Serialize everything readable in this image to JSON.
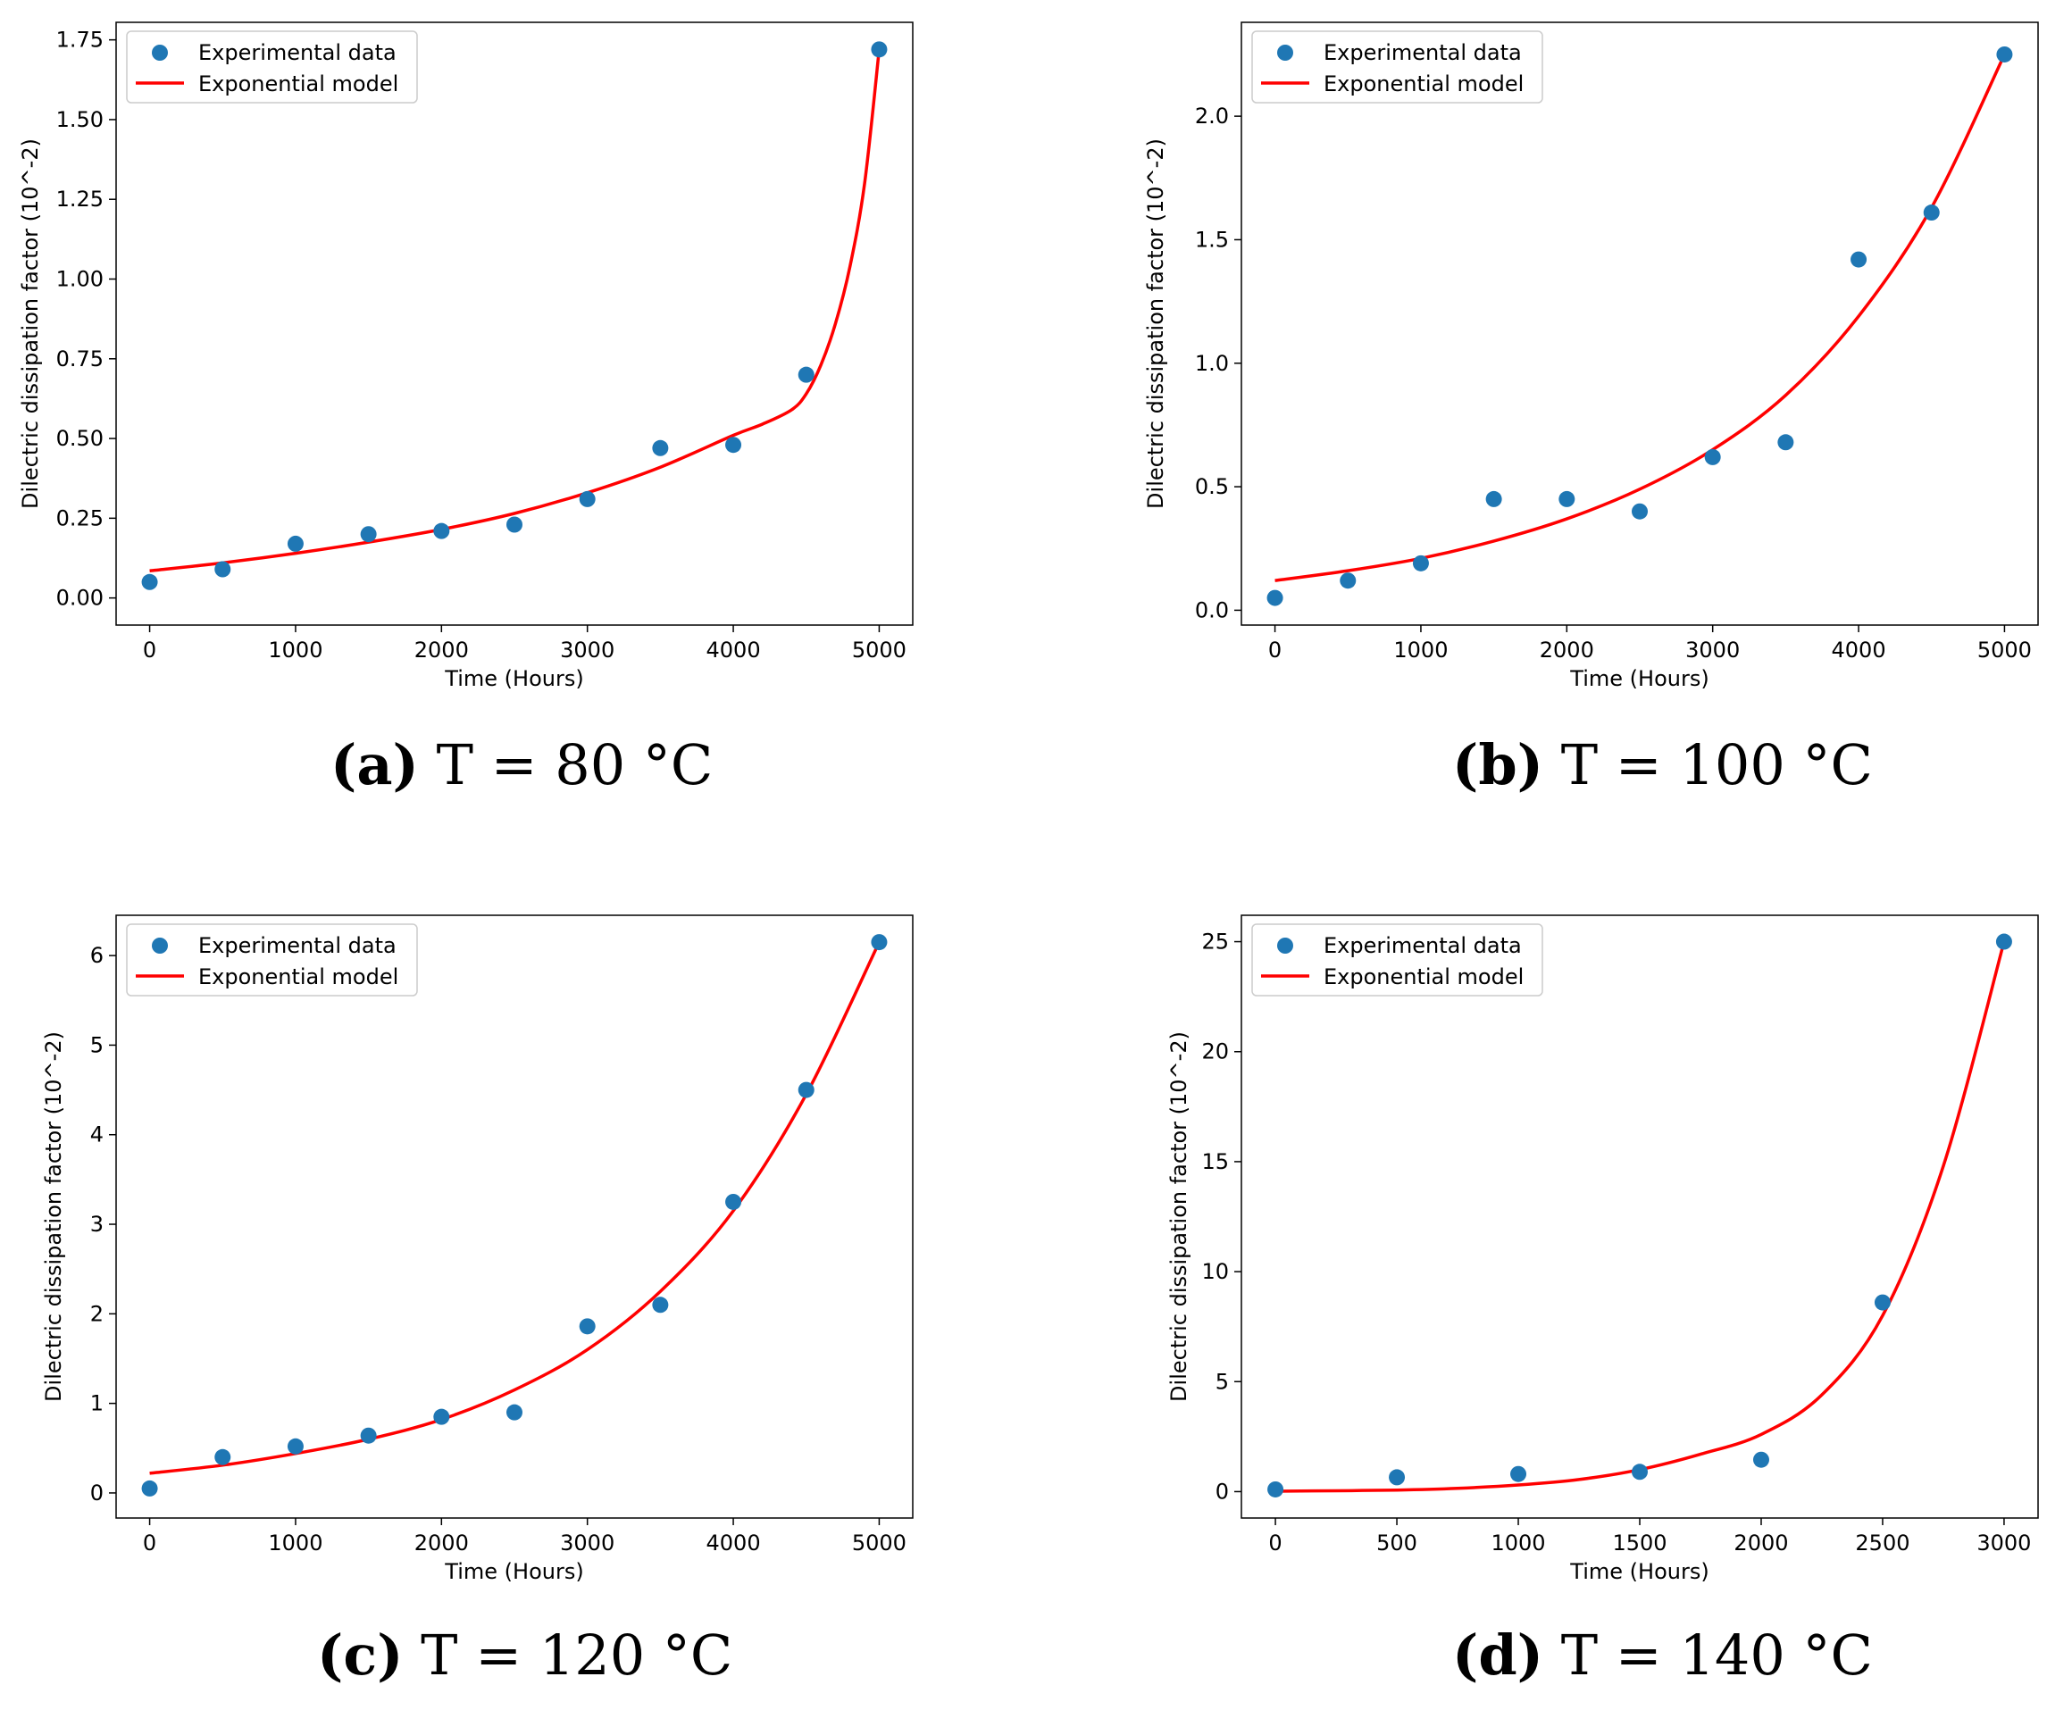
{
  "chart_data": [
    {
      "type": "scatter",
      "panel": "a",
      "caption_letter": "(a)",
      "caption_text": "T = 80 °C",
      "xlabel": "Time (Hours)",
      "ylabel": "Dilectric dissipation factor (10^-2)",
      "xlim": [
        -230,
        5230
      ],
      "ylim": [
        -0.085,
        1.805
      ],
      "xticks": [
        0,
        1000,
        2000,
        3000,
        4000,
        5000
      ],
      "xtick_labels": [
        "0",
        "1000",
        "2000",
        "3000",
        "4000",
        "5000"
      ],
      "yticks": [
        0.0,
        0.25,
        0.5,
        0.75,
        1.0,
        1.25,
        1.5,
        1.75
      ],
      "ytick_labels": [
        "0.00",
        "0.25",
        "0.50",
        "0.75",
        "1.00",
        "1.25",
        "1.50",
        "1.75"
      ],
      "series": [
        {
          "name": "Experimental data",
          "kind": "scatter",
          "color": "#1f77b4",
          "x": [
            0,
            500,
            1000,
            1500,
            2000,
            2500,
            3000,
            3500,
            4000,
            4500,
            5000
          ],
          "y": [
            0.05,
            0.09,
            0.17,
            0.2,
            0.21,
            0.23,
            0.31,
            0.47,
            0.48,
            0.7,
            1.72
          ]
        },
        {
          "name": "Exponential model",
          "kind": "line",
          "color": "#ff0000",
          "x": [
            0,
            500,
            1000,
            1500,
            2000,
            2500,
            3000,
            3500,
            4000,
            4200,
            4400,
            4500,
            4600,
            4700,
            4800,
            4900,
            5000
          ],
          "y": [
            0.085,
            0.11,
            0.14,
            0.175,
            0.215,
            0.265,
            0.33,
            0.41,
            0.51,
            0.545,
            0.59,
            0.64,
            0.73,
            0.86,
            1.04,
            1.3,
            1.72
          ]
        }
      ],
      "legend": {
        "location": "upper-left",
        "entries": [
          "Experimental data",
          "Exponential model"
        ]
      }
    },
    {
      "type": "scatter",
      "panel": "b",
      "caption_letter": "(b)",
      "caption_text": "T = 100 °C",
      "xlabel": "Time (Hours)",
      "ylabel": "Dilectric dissipation factor (10^-2)",
      "xlim": [
        -230,
        5230
      ],
      "ylim": [
        -0.06,
        2.38
      ],
      "xticks": [
        0,
        1000,
        2000,
        3000,
        4000,
        5000
      ],
      "xtick_labels": [
        "0",
        "1000",
        "2000",
        "3000",
        "4000",
        "5000"
      ],
      "yticks": [
        0.0,
        0.5,
        1.0,
        1.5,
        2.0
      ],
      "ytick_labels": [
        "0.0",
        "0.5",
        "1.0",
        "1.5",
        "2.0"
      ],
      "series": [
        {
          "name": "Experimental data",
          "kind": "scatter",
          "color": "#1f77b4",
          "x": [
            0,
            500,
            1000,
            1500,
            2000,
            2500,
            3000,
            3500,
            4000,
            4500,
            5000
          ],
          "y": [
            0.05,
            0.12,
            0.19,
            0.45,
            0.45,
            0.4,
            0.62,
            0.68,
            1.42,
            1.61,
            2.25
          ]
        },
        {
          "name": "Exponential model",
          "kind": "line",
          "color": "#ff0000",
          "x": [
            0,
            500,
            1000,
            1500,
            2000,
            2500,
            3000,
            3500,
            4000,
            4500,
            5000
          ],
          "y": [
            0.12,
            0.16,
            0.21,
            0.28,
            0.37,
            0.49,
            0.65,
            0.87,
            1.19,
            1.63,
            2.25
          ]
        }
      ],
      "legend": {
        "location": "upper-left",
        "entries": [
          "Experimental data",
          "Exponential model"
        ]
      }
    },
    {
      "type": "scatter",
      "panel": "c",
      "caption_letter": "(c)",
      "caption_text": "T = 120 °C",
      "xlabel": "Time (Hours)",
      "ylabel": "Dilectric dissipation factor (10^-2)",
      "xlim": [
        -230,
        5230
      ],
      "ylim": [
        -0.28,
        6.45
      ],
      "xticks": [
        0,
        1000,
        2000,
        3000,
        4000,
        5000
      ],
      "xtick_labels": [
        "0",
        "1000",
        "2000",
        "3000",
        "4000",
        "5000"
      ],
      "yticks": [
        0,
        1,
        2,
        3,
        4,
        5,
        6
      ],
      "ytick_labels": [
        "0",
        "1",
        "2",
        "3",
        "4",
        "5",
        "6"
      ],
      "series": [
        {
          "name": "Experimental data",
          "kind": "scatter",
          "color": "#1f77b4",
          "x": [
            0,
            500,
            1000,
            1500,
            2000,
            2500,
            3000,
            3500,
            4000,
            4500,
            5000
          ],
          "y": [
            0.05,
            0.4,
            0.52,
            0.64,
            0.85,
            0.9,
            1.86,
            2.1,
            3.25,
            4.5,
            6.15
          ]
        },
        {
          "name": "Exponential model",
          "kind": "line",
          "color": "#ff0000",
          "x": [
            0,
            500,
            1000,
            1500,
            2000,
            2500,
            3000,
            3500,
            4000,
            4500,
            5000
          ],
          "y": [
            0.22,
            0.31,
            0.44,
            0.6,
            0.82,
            1.15,
            1.6,
            2.25,
            3.15,
            4.45,
            6.15
          ]
        }
      ],
      "legend": {
        "location": "upper-left",
        "entries": [
          "Experimental data",
          "Exponential model"
        ]
      }
    },
    {
      "type": "scatter",
      "panel": "d",
      "caption_letter": "(d)",
      "caption_text": "T = 140 °C",
      "xlabel": "Time (Hours)",
      "ylabel": "Dilectric dissipation factor (10^-2)",
      "xlim": [
        -140,
        3140
      ],
      "ylim": [
        -1.2,
        26.2
      ],
      "xticks": [
        0,
        500,
        1000,
        1500,
        2000,
        2500,
        3000
      ],
      "xtick_labels": [
        "0",
        "500",
        "1000",
        "1500",
        "2000",
        "2500",
        "3000"
      ],
      "yticks": [
        0,
        5,
        10,
        15,
        20,
        25
      ],
      "ytick_labels": [
        "0",
        "5",
        "10",
        "15",
        "20",
        "25"
      ],
      "series": [
        {
          "name": "Experimental data",
          "kind": "scatter",
          "color": "#1f77b4",
          "x": [
            0,
            500,
            1000,
            1500,
            2000,
            2500,
            3000
          ],
          "y": [
            0.1,
            0.65,
            0.8,
            0.9,
            1.45,
            8.6,
            25.0
          ]
        },
        {
          "name": "Exponential model",
          "kind": "line",
          "color": "#ff0000",
          "x": [
            0,
            250,
            500,
            750,
            1000,
            1250,
            1500,
            1750,
            2000,
            2250,
            2500,
            2750,
            3000
          ],
          "y": [
            0.02,
            0.04,
            0.07,
            0.15,
            0.3,
            0.55,
            1.0,
            1.7,
            2.6,
            4.4,
            8.0,
            14.8,
            25.0
          ]
        }
      ],
      "legend": {
        "location": "upper-left",
        "entries": [
          "Experimental data",
          "Exponential model"
        ]
      }
    }
  ]
}
